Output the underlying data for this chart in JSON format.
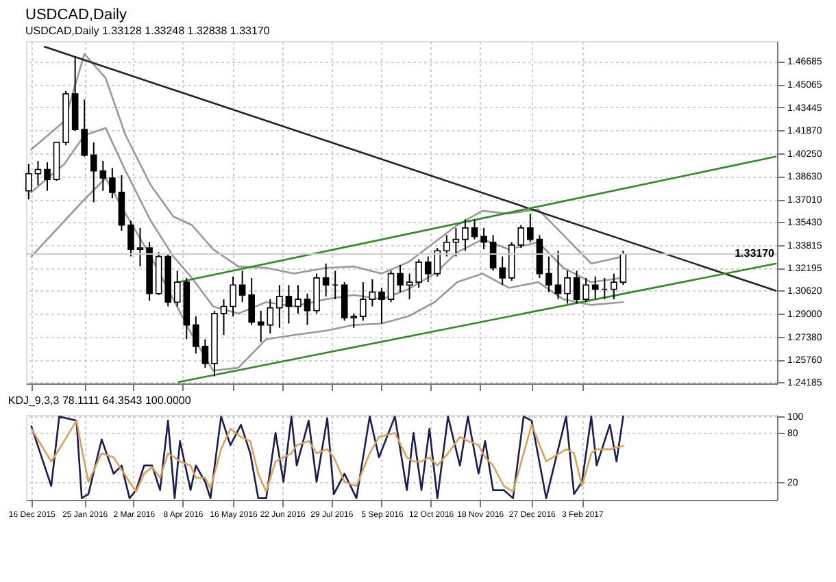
{
  "chart_data": [
    {
      "type": "candlestick",
      "title": "USDCAD,Daily",
      "subtitle": "USDCAD,Daily 1.33128 1.33248 1.32838 1.33170",
      "x": [
        "2015-12-14",
        "2015-12-21",
        "2015-12-28",
        "2016-01-04",
        "2016-01-11",
        "2016-01-18",
        "2016-01-25",
        "2016-02-01",
        "2016-02-08",
        "2016-02-15",
        "2016-02-22",
        "2016-02-29",
        "2016-03-07",
        "2016-03-14",
        "2016-03-21",
        "2016-03-28",
        "2016-04-04",
        "2016-04-11",
        "2016-04-18",
        "2016-04-25",
        "2016-05-02",
        "2016-05-09",
        "2016-05-16",
        "2016-05-23",
        "2016-05-30",
        "2016-06-06",
        "2016-06-13",
        "2016-06-20",
        "2016-06-27",
        "2016-07-04",
        "2016-07-11",
        "2016-07-18",
        "2016-07-25",
        "2016-08-01",
        "2016-08-08",
        "2016-08-15",
        "2016-08-22",
        "2016-08-29",
        "2016-09-05",
        "2016-09-12",
        "2016-09-19",
        "2016-09-26",
        "2016-10-03",
        "2016-10-10",
        "2016-10-17",
        "2016-10-24",
        "2016-10-31",
        "2016-11-07",
        "2016-11-14",
        "2016-11-21",
        "2016-11-28",
        "2016-12-05",
        "2016-12-12",
        "2016-12-19",
        "2016-12-26",
        "2017-01-02",
        "2017-01-09",
        "2017-01-16",
        "2017-01-23",
        "2017-01-30",
        "2017-02-06",
        "2017-02-13",
        "2017-02-20",
        "2017-02-27",
        "2017-03-06"
      ],
      "ohlc": [
        [
          1.376,
          1.395,
          1.37,
          1.388
        ],
        [
          1.388,
          1.397,
          1.38,
          1.391
        ],
        [
          1.391,
          1.396,
          1.376,
          1.384
        ],
        [
          1.384,
          1.41,
          1.383,
          1.41
        ],
        [
          1.41,
          1.446,
          1.408,
          1.444
        ],
        [
          1.444,
          1.47,
          1.418,
          1.419
        ],
        [
          1.419,
          1.44,
          1.4,
          1.401
        ],
        [
          1.401,
          1.41,
          1.368,
          1.39
        ],
        [
          1.39,
          1.397,
          1.376,
          1.385
        ],
        [
          1.385,
          1.392,
          1.371,
          1.375
        ],
        [
          1.375,
          1.387,
          1.348,
          1.352
        ],
        [
          1.352,
          1.355,
          1.33,
          1.335
        ],
        [
          1.335,
          1.35,
          1.323,
          1.336
        ],
        [
          1.336,
          1.34,
          1.299,
          1.304
        ],
        [
          1.304,
          1.333,
          1.303,
          1.33
        ],
        [
          1.33,
          1.332,
          1.295,
          1.298
        ],
        [
          1.298,
          1.32,
          1.295,
          1.312
        ],
        [
          1.312,
          1.315,
          1.272,
          1.282
        ],
        [
          1.282,
          1.288,
          1.262,
          1.267
        ],
        [
          1.267,
          1.272,
          1.252,
          1.255
        ],
        [
          1.255,
          1.292,
          1.246,
          1.29
        ],
        [
          1.29,
          1.3,
          1.275,
          1.295
        ],
        [
          1.295,
          1.316,
          1.288,
          1.31
        ],
        [
          1.31,
          1.32,
          1.298,
          1.303
        ],
        [
          1.303,
          1.315,
          1.282,
          1.284
        ],
        [
          1.284,
          1.292,
          1.27,
          1.282
        ],
        [
          1.282,
          1.3,
          1.276,
          1.294
        ],
        [
          1.294,
          1.31,
          1.28,
          1.302
        ],
        [
          1.302,
          1.31,
          1.283,
          1.295
        ],
        [
          1.295,
          1.31,
          1.29,
          1.3
        ],
        [
          1.3,
          1.304,
          1.282,
          1.292
        ],
        [
          1.292,
          1.318,
          1.29,
          1.315
        ],
        [
          1.315,
          1.325,
          1.302,
          1.31
        ],
        [
          1.31,
          1.32,
          1.3,
          1.31
        ],
        [
          1.31,
          1.312,
          1.285,
          1.287
        ],
        [
          1.287,
          1.29,
          1.28,
          1.288
        ],
        [
          1.288,
          1.312,
          1.285,
          1.3
        ],
        [
          1.3,
          1.314,
          1.295,
          1.305
        ],
        [
          1.305,
          1.308,
          1.283,
          1.3
        ],
        [
          1.3,
          1.32,
          1.298,
          1.318
        ],
        [
          1.318,
          1.324,
          1.305,
          1.31
        ],
        [
          1.31,
          1.318,
          1.3,
          1.312
        ],
        [
          1.312,
          1.328,
          1.308,
          1.326
        ],
        [
          1.326,
          1.33,
          1.312,
          1.318
        ],
        [
          1.318,
          1.336,
          1.316,
          1.334
        ],
        [
          1.334,
          1.345,
          1.33,
          1.34
        ],
        [
          1.34,
          1.35,
          1.33,
          1.342
        ],
        [
          1.342,
          1.356,
          1.334,
          1.35
        ],
        [
          1.35,
          1.356,
          1.342,
          1.344
        ],
        [
          1.344,
          1.35,
          1.335,
          1.34
        ],
        [
          1.34,
          1.345,
          1.32,
          1.322
        ],
        [
          1.322,
          1.33,
          1.31,
          1.315
        ],
        [
          1.315,
          1.34,
          1.313,
          1.338
        ],
        [
          1.338,
          1.352,
          1.336,
          1.35
        ],
        [
          1.35,
          1.36,
          1.34,
          1.342
        ],
        [
          1.342,
          1.345,
          1.315,
          1.318
        ],
        [
          1.318,
          1.33,
          1.305,
          1.31
        ],
        [
          1.31,
          1.334,
          1.3,
          1.304
        ],
        [
          1.304,
          1.32,
          1.297,
          1.315
        ],
        [
          1.315,
          1.32,
          1.297,
          1.3
        ],
        [
          1.3,
          1.315,
          1.298,
          1.31
        ],
        [
          1.31,
          1.316,
          1.3,
          1.307
        ],
        [
          1.307,
          1.315,
          1.3,
          1.307
        ],
        [
          1.307,
          1.318,
          1.3,
          1.312
        ],
        [
          1.312,
          1.334,
          1.31,
          1.3317
        ]
      ],
      "series": [
        {
          "type": "line",
          "color": "#999999",
          "x": [
            "2015-12-16",
            "2016-01-10",
            "2016-01-25",
            "2016-02-10",
            "2016-02-25",
            "2016-03-15",
            "2016-04-01",
            "2016-04-15",
            "2016-05-01",
            "2016-05-20",
            "2016-06-10",
            "2016-07-01",
            "2016-07-25",
            "2016-08-15",
            "2016-09-05",
            "2016-09-25",
            "2016-10-15",
            "2016-11-01",
            "2016-11-20",
            "2016-12-10",
            "2017-01-01",
            "2017-01-20",
            "2017-02-10",
            "2017-03-06"
          ],
          "values": [
            1.405,
            1.425,
            1.472,
            1.455,
            1.415,
            1.38,
            1.358,
            1.352,
            1.335,
            1.323,
            1.322,
            1.318,
            1.322,
            1.323,
            1.318,
            1.326,
            1.34,
            1.352,
            1.362,
            1.36,
            1.363,
            1.345,
            1.325,
            1.33
          ]
        },
        {
          "type": "line",
          "color": "#999999",
          "x": [
            "2015-12-16",
            "2016-01-10",
            "2016-01-25",
            "2016-02-10",
            "2016-02-25",
            "2016-03-15",
            "2016-04-01",
            "2016-04-15",
            "2016-05-01",
            "2016-05-20",
            "2016-06-10",
            "2016-07-01",
            "2016-07-25",
            "2016-08-15",
            "2016-09-05",
            "2016-09-25",
            "2016-10-15",
            "2016-11-01",
            "2016-11-20",
            "2016-12-10",
            "2017-01-01",
            "2017-01-20",
            "2017-02-10",
            "2017-03-06"
          ],
          "values": [
            1.375,
            1.395,
            1.415,
            1.42,
            1.39,
            1.355,
            1.33,
            1.315,
            1.295,
            1.29,
            1.298,
            1.295,
            1.3,
            1.303,
            1.3,
            1.307,
            1.318,
            1.333,
            1.342,
            1.335,
            1.34,
            1.322,
            1.312,
            1.315
          ]
        },
        {
          "type": "line",
          "color": "#999999",
          "x": [
            "2015-12-16",
            "2016-01-10",
            "2016-01-25",
            "2016-02-10",
            "2016-02-25",
            "2016-03-15",
            "2016-04-01",
            "2016-04-15",
            "2016-05-01",
            "2016-05-20",
            "2016-06-10",
            "2016-07-01",
            "2016-07-25",
            "2016-08-15",
            "2016-09-05",
            "2016-09-25",
            "2016-10-15",
            "2016-11-01",
            "2016-11-20",
            "2016-12-10",
            "2017-01-01",
            "2017-01-20",
            "2017-02-10",
            "2017-03-06"
          ],
          "values": [
            1.33,
            1.355,
            1.37,
            1.385,
            1.36,
            1.33,
            1.3,
            1.275,
            1.25,
            1.252,
            1.272,
            1.275,
            1.278,
            1.282,
            1.283,
            1.288,
            1.298,
            1.312,
            1.318,
            1.308,
            1.312,
            1.3,
            1.296,
            1.298
          ]
        },
        {
          "type": "line",
          "color": "#222222",
          "x": [
            "2015-12-26",
            "2017-06-29"
          ],
          "values": [
            1.477,
            1.306
          ]
        },
        {
          "type": "line",
          "color": "#2e8b22",
          "x": [
            "2016-04-05",
            "2017-06-29"
          ],
          "values": [
            1.312,
            1.4
          ]
        },
        {
          "type": "line",
          "color": "#2e8b22",
          "x": [
            "2016-04-05",
            "2017-06-29"
          ],
          "values": [
            1.242,
            1.325
          ]
        }
      ],
      "ref_lines": [
        {
          "axis": "y",
          "value": 1.3317,
          "label": "1.33170",
          "color": "#cccccc"
        }
      ],
      "xlim": [
        "2015-12-12",
        "2017-06-30"
      ],
      "xticks": [
        {
          "value": "2015-12-16",
          "label": null
        },
        {
          "value": "2016-01-25",
          "label": null
        },
        {
          "value": "2016-03-02",
          "label": null
        },
        {
          "value": "2016-04-08",
          "label": null
        },
        {
          "value": "2016-05-16",
          "label": null
        },
        {
          "value": "2016-06-22",
          "label": null
        },
        {
          "value": "2016-07-29",
          "label": null
        },
        {
          "value": "2016-09-05",
          "label": null
        },
        {
          "value": "2016-10-12",
          "label": null
        },
        {
          "value": "2016-11-18",
          "label": null
        },
        {
          "value": "2016-12-27",
          "label": null
        },
        {
          "value": "2017-02-03",
          "label": null
        }
      ],
      "ylim": [
        1.241,
        1.481
      ],
      "yticks": [
        {
          "value": 1.24185,
          "label": "1.24185"
        },
        {
          "value": 1.2576,
          "label": "1.25760"
        },
        {
          "value": 1.2738,
          "label": "1.27380"
        },
        {
          "value": 1.29,
          "label": "1.29000"
        },
        {
          "value": 1.3062,
          "label": "1.30620"
        },
        {
          "value": 1.32195,
          "label": "1.32195"
        },
        {
          "value": 1.33815,
          "label": "1.33815"
        },
        {
          "value": 1.3543,
          "label": "1.35430"
        },
        {
          "value": 1.3701,
          "label": "1.37010"
        },
        {
          "value": 1.3863,
          "label": "1.38630"
        },
        {
          "value": 1.4025,
          "label": "1.40250"
        },
        {
          "value": 1.4187,
          "label": "1.41870"
        },
        {
          "value": 1.43445,
          "label": "1.43445"
        },
        {
          "value": 1.45065,
          "label": "1.45065"
        },
        {
          "value": 1.46685,
          "label": "1.46685"
        }
      ],
      "tick_labels": "y",
      "grid": true,
      "line_style": "solid",
      "marker": "none"
    },
    {
      "type": "line",
      "title": "KDJ_9,3,3 78.1111 64.3543 100.0000",
      "series": [
        {
          "color": "#1c1c50",
          "x": [
            "2015-12-16",
            "2015-12-31",
            "2016-01-06",
            "2016-01-19",
            "2016-01-23",
            "2016-01-28",
            "2016-02-07",
            "2016-02-16",
            "2016-02-22",
            "2016-02-28",
            "2016-03-04",
            "2016-03-10",
            "2016-03-16",
            "2016-03-22",
            "2016-03-28",
            "2016-04-02",
            "2016-04-06",
            "2016-04-14",
            "2016-04-18",
            "2016-04-25",
            "2016-04-29",
            "2016-05-07",
            "2016-05-14",
            "2016-05-22",
            "2016-05-29",
            "2016-06-04",
            "2016-06-10",
            "2016-06-17",
            "2016-06-23",
            "2016-06-29",
            "2016-07-03",
            "2016-07-12",
            "2016-07-18",
            "2016-07-26",
            "2016-07-31",
            "2016-08-08",
            "2016-08-17",
            "2016-08-27",
            "2016-09-03",
            "2016-09-15",
            "2016-09-24",
            "2016-09-29",
            "2016-10-05",
            "2016-10-11",
            "2016-10-17",
            "2016-10-25",
            "2016-11-03",
            "2016-11-09",
            "2016-11-17",
            "2016-11-22",
            "2016-11-28",
            "2016-12-06",
            "2016-12-13",
            "2016-12-21",
            "2016-12-27",
            "2017-01-07",
            "2017-01-22",
            "2017-01-28",
            "2017-02-03",
            "2017-02-10",
            "2017-02-14",
            "2017-02-24",
            "2017-03-01",
            "2017-03-06"
          ],
          "values": [
            88,
            15,
            100,
            95,
            0,
            5,
            72,
            30,
            40,
            0,
            10,
            40,
            40,
            10,
            95,
            0,
            70,
            10,
            40,
            20,
            0,
            100,
            65,
            90,
            55,
            0,
            0,
            80,
            20,
            100,
            40,
            95,
            20,
            98,
            5,
            30,
            0,
            100,
            50,
            100,
            10,
            80,
            10,
            85,
            0,
            100,
            40,
            100,
            30,
            70,
            10,
            10,
            0,
            100,
            95,
            0,
            100,
            5,
            20,
            100,
            40,
            90,
            45,
            100
          ]
        },
        {
          "color": "#d9a25a",
          "x": [
            "2015-12-16",
            "2015-12-31",
            "2016-01-06",
            "2016-01-19",
            "2016-01-23",
            "2016-01-28",
            "2016-02-07",
            "2016-02-16",
            "2016-02-22",
            "2016-02-28",
            "2016-03-04",
            "2016-03-10",
            "2016-03-16",
            "2016-03-22",
            "2016-03-28",
            "2016-04-02",
            "2016-04-06",
            "2016-04-14",
            "2016-04-18",
            "2016-04-25",
            "2016-04-29",
            "2016-05-07",
            "2016-05-14",
            "2016-05-22",
            "2016-05-29",
            "2016-06-04",
            "2016-06-10",
            "2016-06-17",
            "2016-06-23",
            "2016-06-29",
            "2016-07-03",
            "2016-07-12",
            "2016-07-18",
            "2016-07-26",
            "2016-07-31",
            "2016-08-08",
            "2016-08-17",
            "2016-08-27",
            "2016-09-03",
            "2016-09-15",
            "2016-09-24",
            "2016-09-29",
            "2016-10-05",
            "2016-10-11",
            "2016-10-17",
            "2016-10-25",
            "2016-11-03",
            "2016-11-09",
            "2016-11-17",
            "2016-11-22",
            "2016-11-28",
            "2016-12-06",
            "2016-12-13",
            "2016-12-21",
            "2016-12-27",
            "2017-01-07",
            "2017-01-22",
            "2017-01-28",
            "2017-02-03",
            "2017-02-10",
            "2017-02-14",
            "2017-02-24",
            "2017-03-01",
            "2017-03-06"
          ],
          "values": [
            85,
            45,
            60,
            95,
            60,
            20,
            55,
            50,
            35,
            20,
            8,
            30,
            38,
            25,
            55,
            50,
            45,
            40,
            25,
            25,
            12,
            60,
            85,
            75,
            70,
            30,
            8,
            45,
            50,
            55,
            65,
            70,
            55,
            60,
            50,
            20,
            15,
            55,
            75,
            80,
            50,
            45,
            45,
            50,
            40,
            55,
            75,
            70,
            65,
            50,
            40,
            15,
            8,
            55,
            90,
            45,
            60,
            55,
            15,
            55,
            60,
            60,
            62,
            64
          ]
        }
      ],
      "xlim": [
        "2015-12-12",
        "2017-06-30"
      ],
      "xticks": [
        {
          "value": "2015-12-16",
          "label": "16 Dec 2015"
        },
        {
          "value": "2016-01-25",
          "label": "25 Jan 2016"
        },
        {
          "value": "2016-03-02",
          "label": "2 Mar 2016"
        },
        {
          "value": "2016-04-08",
          "label": "8 Apr 2016"
        },
        {
          "value": "2016-05-16",
          "label": "16 May 2016"
        },
        {
          "value": "2016-06-22",
          "label": "22 Jun 2016"
        },
        {
          "value": "2016-07-29",
          "label": "29 Jul 2016"
        },
        {
          "value": "2016-09-05",
          "label": "5 Sep 2016"
        },
        {
          "value": "2016-10-12",
          "label": "12 Oct 2016"
        },
        {
          "value": "2016-11-18",
          "label": "18 Nov 2016"
        },
        {
          "value": "2016-12-27",
          "label": "27 Dec 2016"
        },
        {
          "value": "2017-02-03",
          "label": "3 Feb 2017"
        }
      ],
      "ylim": [
        -2,
        102
      ],
      "yticks": [
        20,
        80,
        100
      ],
      "grid": true,
      "line_style": "solid",
      "marker": "none"
    }
  ]
}
